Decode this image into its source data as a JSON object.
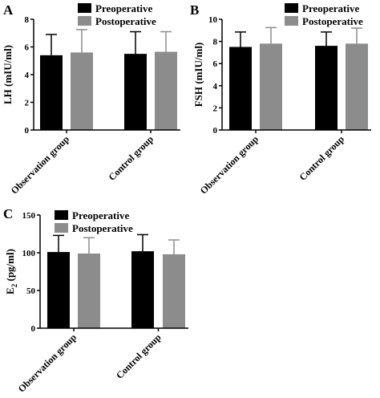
{
  "colors": {
    "preoperative": "#000000",
    "postoperative": "#8c8c8c",
    "axis": "#000000"
  },
  "chart_data": [
    {
      "panel": "A",
      "type": "bar",
      "ylabel": "LH (mIU/ml)",
      "categories": [
        "Observation group",
        "Control group"
      ],
      "ylim": [
        0,
        8
      ],
      "yticks": [
        0,
        2,
        4,
        6,
        8
      ],
      "legend": "top-right",
      "grid": false,
      "series": [
        {
          "name": "Preoperative",
          "values": [
            5.4,
            5.5
          ],
          "errors": [
            1.5,
            1.6
          ]
        },
        {
          "name": "Postoperative",
          "values": [
            5.6,
            5.65
          ],
          "errors": [
            1.65,
            1.45
          ]
        }
      ]
    },
    {
      "panel": "B",
      "type": "bar",
      "ylabel": "FSH (mIU/ml)",
      "categories": [
        "Observation group",
        "Control group"
      ],
      "ylim": [
        0,
        10
      ],
      "yticks": [
        0,
        2,
        4,
        6,
        8,
        10
      ],
      "legend": "top-right",
      "grid": false,
      "series": [
        {
          "name": "Preoperative",
          "values": [
            7.5,
            7.6
          ],
          "errors": [
            1.35,
            1.25
          ]
        },
        {
          "name": "Postoperative",
          "values": [
            7.8,
            7.8
          ],
          "errors": [
            1.45,
            1.4
          ]
        }
      ]
    },
    {
      "panel": "C",
      "type": "bar",
      "ylabel": "E2 (pg/ml)",
      "ylabel_main": "E",
      "ylabel_sub": "2",
      "ylabel_rest": " (pg/ml)",
      "categories": [
        "Observation group",
        "Control group"
      ],
      "ylim": [
        0,
        150
      ],
      "yticks": [
        0,
        50,
        100,
        150
      ],
      "legend": "top-right",
      "grid": false,
      "series": [
        {
          "name": "Preoperative",
          "values": [
            101,
            102
          ],
          "errors": [
            22,
            22
          ]
        },
        {
          "name": "Postoperative",
          "values": [
            99,
            98
          ],
          "errors": [
            21,
            19
          ]
        }
      ]
    }
  ]
}
